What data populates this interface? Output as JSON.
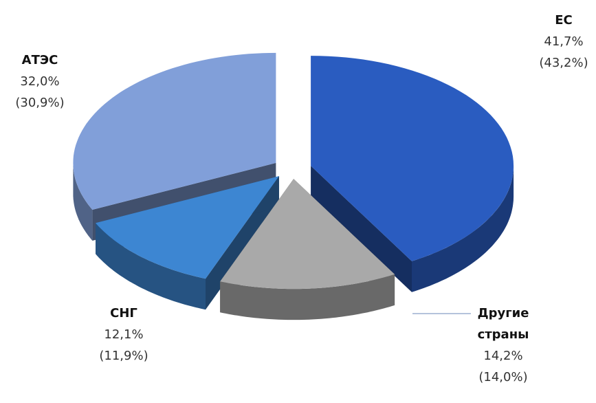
{
  "chart_data": {
    "type": "pie",
    "categories": [
      "ЕС",
      "Другие страны",
      "СНГ",
      "АТЭС"
    ],
    "colors": [
      "#2a5cc0",
      "#a9a9a9",
      "#3d86d2",
      "#819fd9"
    ],
    "series": [
      {
        "values": [
          41.7,
          14.2,
          12.1,
          32.0
        ],
        "value_labels": [
          "41,7%",
          "14,2%",
          "12,1%",
          "32,0%"
        ]
      },
      {
        "values": [
          43.2,
          14.0,
          11.9,
          30.9
        ],
        "value_labels": [
          "(43,2%)",
          "(14,0%)",
          "(11,9%)",
          "(30,9%)"
        ]
      }
    ]
  }
}
